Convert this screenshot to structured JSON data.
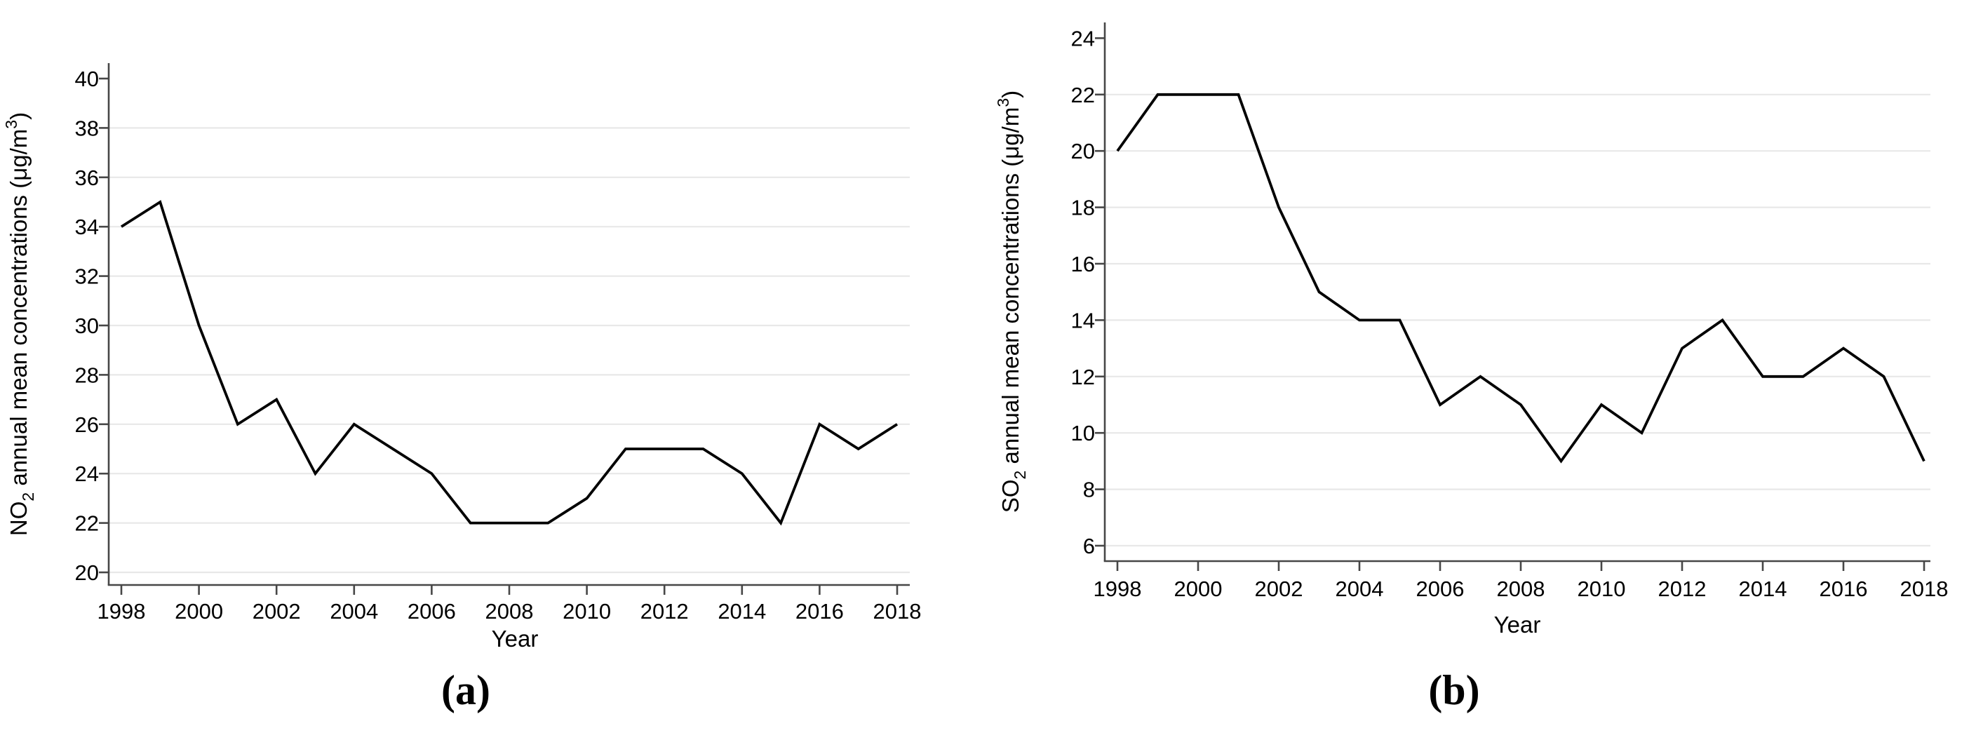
{
  "figure": {
    "background_color": "#ffffff",
    "line_color": "#000000",
    "grid_color": "#e8e8e8",
    "axis_color": "#474747",
    "text_color": "#000000"
  },
  "chart_data": [
    {
      "id": "a",
      "type": "line",
      "caption": "(a)",
      "xlabel": "Year",
      "ylabel_text": "NO2 annual mean concentrations (μg/m3)",
      "ylabel_parts": [
        {
          "text": "NO"
        },
        {
          "text": "2",
          "style": "sub"
        },
        {
          "text": " annual mean concentrations (μg/m"
        },
        {
          "text": "3",
          "style": "sup"
        },
        {
          "text": ")"
        }
      ],
      "x": [
        1998,
        1999,
        2000,
        2001,
        2002,
        2003,
        2004,
        2005,
        2006,
        2007,
        2008,
        2009,
        2010,
        2011,
        2012,
        2013,
        2014,
        2015,
        2016,
        2017,
        2018
      ],
      "series": [
        {
          "name": "NO2 annual mean",
          "values": [
            34,
            35,
            30,
            26,
            27,
            24,
            26,
            25,
            24,
            22,
            22,
            22,
            23,
            25,
            25,
            25,
            24,
            22,
            26,
            25,
            26
          ]
        }
      ],
      "xlim": [
        1998,
        2018
      ],
      "ylim": [
        20,
        40
      ],
      "yticks": [
        20,
        22,
        24,
        26,
        28,
        30,
        32,
        34,
        36,
        38,
        40
      ],
      "xticks": [
        1998,
        2000,
        2002,
        2004,
        2006,
        2008,
        2010,
        2012,
        2014,
        2016,
        2018
      ],
      "grid": "horizontal",
      "legend": "none"
    },
    {
      "id": "b",
      "type": "line",
      "caption": "(b)",
      "xlabel": "Year",
      "ylabel_text": "SO2 annual mean concentrations (μg/m3)",
      "ylabel_parts": [
        {
          "text": "SO"
        },
        {
          "text": "2",
          "style": "sub"
        },
        {
          "text": " annual mean concentrations (μg/m"
        },
        {
          "text": "3",
          "style": "sup"
        },
        {
          "text": ")"
        }
      ],
      "x": [
        1998,
        1999,
        2000,
        2001,
        2002,
        2003,
        2004,
        2005,
        2006,
        2007,
        2008,
        2009,
        2010,
        2011,
        2012,
        2013,
        2014,
        2015,
        2016,
        2017,
        2018
      ],
      "series": [
        {
          "name": "SO2 annual mean",
          "values": [
            20,
            22,
            22,
            22,
            18,
            15,
            14,
            14,
            11,
            12,
            11,
            9,
            11,
            10,
            13,
            14,
            12,
            12,
            13,
            12,
            9
          ]
        }
      ],
      "xlim": [
        1998,
        2018
      ],
      "ylim": [
        6,
        24
      ],
      "yticks": [
        6,
        8,
        10,
        12,
        14,
        16,
        18,
        20,
        22,
        24
      ],
      "xticks": [
        1998,
        2000,
        2002,
        2004,
        2006,
        2008,
        2010,
        2012,
        2014,
        2016,
        2018
      ],
      "grid": "horizontal",
      "legend": "none"
    }
  ]
}
